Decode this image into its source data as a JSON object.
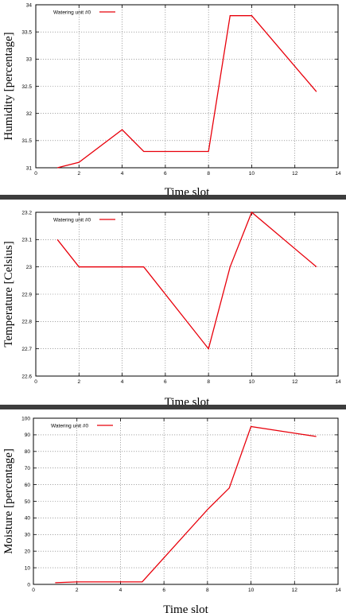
{
  "chart_data": [
    {
      "type": "line",
      "title": "",
      "xlabel": "Time slot",
      "ylabel": "Humidity [percentage]",
      "xlim": [
        0,
        14
      ],
      "ylim": [
        31,
        34
      ],
      "xticks": [
        0,
        2,
        4,
        6,
        8,
        10,
        12,
        14
      ],
      "yticks": [
        31,
        31.5,
        32,
        32.5,
        33,
        33.5,
        34
      ],
      "ytick_labels": [
        "31",
        "31.5",
        "32",
        "32.5",
        "33",
        "33.5",
        "34"
      ],
      "grid": true,
      "legend_position": "top-left",
      "series": [
        {
          "name": "Watering unit #0",
          "color": "#e8000b",
          "x": [
            1,
            2,
            4,
            5,
            8,
            9,
            10,
            13
          ],
          "y": [
            31,
            31.1,
            31.7,
            31.3,
            31.3,
            33.8,
            33.8,
            32.4
          ]
        }
      ]
    },
    {
      "type": "line",
      "title": "",
      "xlabel": "Time slot",
      "ylabel": "Temperature [Celsius]",
      "xlim": [
        0,
        14
      ],
      "ylim": [
        22.6,
        23.2
      ],
      "xticks": [
        0,
        2,
        4,
        6,
        8,
        10,
        12,
        14
      ],
      "yticks": [
        22.6,
        22.7,
        22.8,
        22.9,
        23,
        23.1,
        23.2
      ],
      "ytick_labels": [
        "22.6",
        "22.7",
        "22.8",
        "22.9",
        "23",
        "23.1",
        "23.2"
      ],
      "grid": true,
      "legend_position": "top-left",
      "series": [
        {
          "name": "Watering unit #0",
          "color": "#e8000b",
          "x": [
            1,
            2,
            5,
            8,
            9,
            10,
            13
          ],
          "y": [
            23.1,
            23,
            23,
            22.7,
            23,
            23.2,
            23
          ]
        }
      ]
    },
    {
      "type": "line",
      "title": "",
      "xlabel": "Time slot",
      "ylabel": "Moisture [percentage]",
      "xlim": [
        0,
        14
      ],
      "ylim": [
        0,
        100
      ],
      "xticks": [
        0,
        2,
        4,
        6,
        8,
        10,
        12,
        14
      ],
      "yticks": [
        0,
        10,
        20,
        30,
        40,
        50,
        60,
        70,
        80,
        90,
        100
      ],
      "ytick_labels": [
        "0",
        "10",
        "20",
        "30",
        "40",
        "50",
        "60",
        "70",
        "80",
        "90",
        "100"
      ],
      "grid": true,
      "legend_position": "top-left",
      "series": [
        {
          "name": "Watering unit #0",
          "color": "#e8000b",
          "x": [
            1,
            2,
            5,
            8,
            9,
            10,
            13
          ],
          "y": [
            1,
            1.5,
            1.5,
            45,
            58,
            95,
            89
          ]
        }
      ]
    }
  ]
}
